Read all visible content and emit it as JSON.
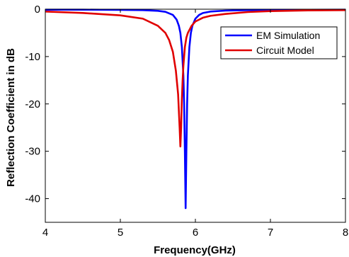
{
  "chart_data": {
    "type": "line",
    "title": "",
    "xlabel": "Frequency(GHz)",
    "ylabel": "Reflection Coefficient in dB",
    "xlim": [
      4,
      8
    ],
    "ylim": [
      -45,
      0
    ],
    "xticks": [
      4,
      5,
      6,
      7,
      8
    ],
    "yticks": [
      0,
      -10,
      -20,
      -30,
      -40
    ],
    "grid": false,
    "legend_position": "top-right",
    "series": [
      {
        "name": "EM Simulation",
        "color": "#0000ff",
        "x": [
          4.0,
          4.5,
          5.0,
          5.3,
          5.5,
          5.6,
          5.7,
          5.75,
          5.78,
          5.8,
          5.82,
          5.84,
          5.85,
          5.86,
          5.87,
          5.88,
          5.89,
          5.9,
          5.92,
          5.94,
          5.96,
          6.0,
          6.05,
          6.1,
          6.2,
          6.4,
          6.7,
          7.0,
          7.5,
          8.0
        ],
        "y": [
          -0.1,
          -0.1,
          -0.15,
          -0.2,
          -0.35,
          -0.55,
          -1.2,
          -2.2,
          -3.5,
          -5.0,
          -8.0,
          -14.0,
          -20.0,
          -30.0,
          -42.0,
          -30.0,
          -20.0,
          -14.0,
          -8.0,
          -5.0,
          -3.5,
          -2.0,
          -1.2,
          -0.8,
          -0.5,
          -0.3,
          -0.2,
          -0.15,
          -0.12,
          -0.1
        ]
      },
      {
        "name": "Circuit Model",
        "color": "#e00000",
        "x": [
          4.0,
          4.5,
          5.0,
          5.3,
          5.5,
          5.6,
          5.65,
          5.7,
          5.74,
          5.77,
          5.79,
          5.8,
          5.81,
          5.82,
          5.83,
          5.84,
          5.86,
          5.88,
          5.9,
          5.95,
          6.0,
          6.1,
          6.2,
          6.4,
          6.7,
          7.0,
          7.5,
          8.0
        ],
        "y": [
          -0.5,
          -0.8,
          -1.3,
          -2.0,
          -3.5,
          -5.0,
          -6.5,
          -9.0,
          -13.0,
          -18.0,
          -25.0,
          -29.0,
          -25.0,
          -19.0,
          -15.0,
          -12.0,
          -8.0,
          -6.0,
          -5.0,
          -3.5,
          -2.6,
          -1.8,
          -1.4,
          -1.0,
          -0.6,
          -0.4,
          -0.25,
          -0.2
        ]
      }
    ]
  }
}
